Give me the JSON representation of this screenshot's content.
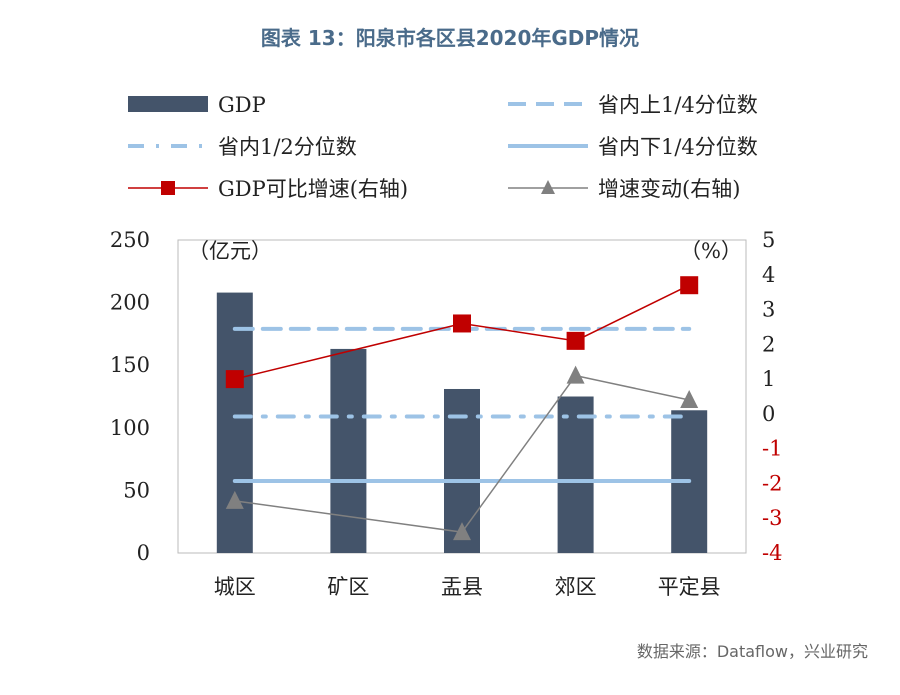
{
  "title": "图表 13：阳泉市各区县2020年GDP情况",
  "source": "数据来源：Dataflow，兴业研究",
  "chart_data": {
    "type": "bar",
    "title": "图表 13：阳泉市各区县2020年GDP情况",
    "categories": [
      "城区",
      "矿区",
      "盂县",
      "郊区",
      "平定县"
    ],
    "left_unit": "（亿元）",
    "right_unit": "（%）",
    "ylim": [
      0,
      250
    ],
    "yticks": [
      0,
      50,
      100,
      150,
      200,
      250
    ],
    "y2lim": [
      -4,
      5
    ],
    "y2ticks": [
      -4,
      -3,
      -2,
      -1,
      0,
      1,
      2,
      3,
      4,
      5
    ],
    "series": [
      {
        "name": "GDP",
        "type": "bar",
        "axis": "left",
        "values": [
          208,
          163,
          131,
          125,
          114
        ],
        "color": "#44546a"
      },
      {
        "name": "省内上1/4分位数",
        "type": "line-dashed",
        "axis": "left",
        "values": [
          179,
          179,
          179,
          179,
          179
        ],
        "color": "#9dc3e6"
      },
      {
        "name": "省内1/2分位数",
        "type": "line-dashdot",
        "axis": "left",
        "values": [
          109,
          109,
          109,
          109,
          109
        ],
        "color": "#9dc3e6"
      },
      {
        "name": "省内下1/4分位数",
        "type": "line-solid",
        "axis": "left",
        "values": [
          57.5,
          57.5,
          57.5,
          57.5,
          57.5
        ],
        "color": "#9dc3e6"
      },
      {
        "name": "GDP可比增速(右轴)",
        "type": "line-square",
        "axis": "right",
        "values": [
          1.0,
          null,
          2.6,
          2.1,
          3.7
        ],
        "color": "#c00000"
      },
      {
        "name": "增速变动(右轴)",
        "type": "line-triangle",
        "axis": "right",
        "values": [
          -2.5,
          null,
          -3.4,
          1.1,
          0.4
        ],
        "color": "#808080"
      }
    ],
    "legend": "top"
  }
}
